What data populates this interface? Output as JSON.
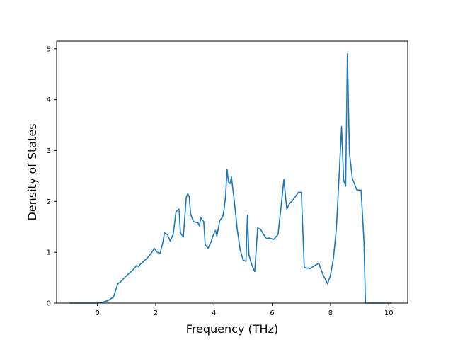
{
  "chart_data": {
    "type": "line",
    "title": "",
    "xlabel": "Frequency (THz)",
    "ylabel": "Density of States",
    "xlim": [
      -1.4,
      10.65
    ],
    "ylim": [
      0,
      5.15
    ],
    "xticks": [
      0,
      2,
      4,
      6,
      8,
      10
    ],
    "yticks": [
      0,
      1,
      2,
      3,
      4,
      5
    ],
    "grid": false,
    "series": [
      {
        "color": "#1f77b4",
        "x": [
          -0.95,
          0.0,
          0.2,
          0.4,
          0.55,
          0.7,
          0.8,
          0.9,
          1.0,
          1.2,
          1.35,
          1.4,
          1.5,
          1.7,
          1.85,
          1.95,
          2.05,
          2.15,
          2.25,
          2.3,
          2.4,
          2.5,
          2.6,
          2.7,
          2.8,
          2.85,
          2.95,
          3.05,
          3.1,
          3.15,
          3.2,
          3.3,
          3.45,
          3.5,
          3.55,
          3.65,
          3.7,
          3.8,
          3.9,
          3.95,
          4.05,
          4.1,
          4.2,
          4.3,
          4.35,
          4.4,
          4.45,
          4.5,
          4.55,
          4.6,
          4.7,
          4.8,
          4.9,
          5.0,
          5.1,
          5.15,
          5.2,
          5.3,
          5.4,
          5.5,
          5.6,
          5.7,
          5.8,
          5.9,
          6.05,
          6.2,
          6.3,
          6.4,
          6.5,
          6.6,
          6.7,
          6.8,
          6.9,
          7.0,
          7.1,
          7.3,
          7.5,
          7.6,
          7.75,
          7.9,
          8.0,
          8.1,
          8.2,
          8.3,
          8.38,
          8.45,
          8.52,
          8.58,
          8.65,
          8.75,
          8.9,
          9.05,
          9.15,
          9.2,
          9.5,
          10.1
        ],
        "values": [
          0.0,
          0.0,
          0.02,
          0.06,
          0.12,
          0.38,
          0.42,
          0.48,
          0.54,
          0.64,
          0.74,
          0.72,
          0.78,
          0.88,
          0.98,
          1.08,
          1.0,
          0.98,
          1.2,
          1.38,
          1.35,
          1.22,
          1.35,
          1.8,
          1.85,
          1.38,
          1.3,
          2.08,
          2.15,
          2.1,
          1.75,
          1.6,
          1.58,
          1.52,
          1.68,
          1.6,
          1.15,
          1.08,
          1.2,
          1.3,
          1.43,
          1.32,
          1.62,
          1.7,
          1.85,
          2.1,
          2.63,
          2.38,
          2.35,
          2.48,
          2.0,
          1.45,
          1.05,
          0.85,
          0.82,
          1.73,
          0.95,
          0.75,
          0.62,
          1.48,
          1.45,
          1.35,
          1.27,
          1.28,
          1.25,
          1.35,
          1.88,
          2.43,
          1.85,
          1.96,
          2.02,
          2.1,
          2.18,
          2.18,
          0.7,
          0.68,
          0.75,
          0.78,
          0.55,
          0.38,
          0.55,
          0.88,
          1.45,
          2.55,
          3.47,
          2.42,
          2.3,
          4.9,
          2.95,
          2.45,
          2.23,
          2.22,
          1.2,
          0.0,
          0.0,
          0.0
        ]
      }
    ]
  }
}
